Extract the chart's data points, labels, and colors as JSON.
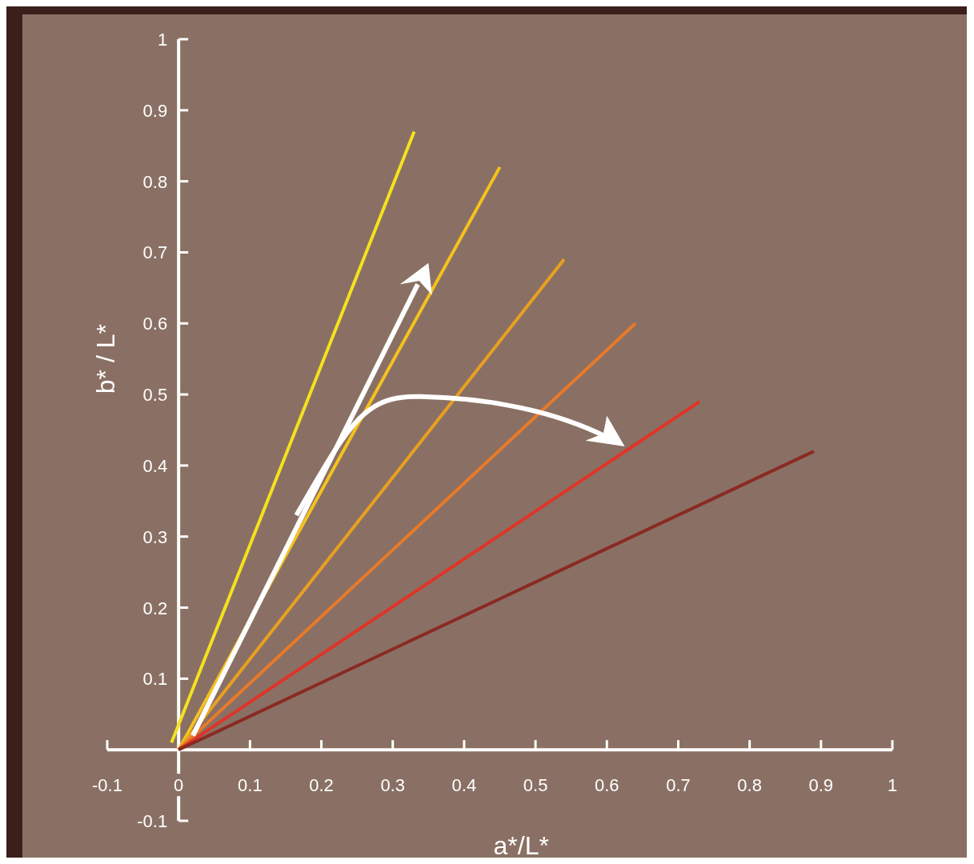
{
  "chart_data": {
    "type": "line",
    "xlabel": "a*/L*",
    "ylabel": "b* / L*",
    "xlim": [
      -0.1,
      1
    ],
    "ylim": [
      -0.1,
      1
    ],
    "xticks": [
      -0.1,
      0,
      0.1,
      0.2,
      0.3,
      0.4,
      0.5,
      0.6,
      0.7,
      0.8,
      0.9,
      1
    ],
    "yticks": [
      -0.1,
      0.1,
      0.2,
      0.3,
      0.4,
      0.5,
      0.6,
      0.7,
      0.8,
      0.9,
      1
    ],
    "grid": false,
    "marker": "none",
    "line_style": "solid",
    "series": [
      {
        "color": "#f5e11e",
        "x": [
          -0.01,
          0.33
        ],
        "values": [
          0.01,
          0.87
        ]
      },
      {
        "color": "#f5c21e",
        "x": [
          0,
          0.45
        ],
        "values": [
          0,
          0.82
        ]
      },
      {
        "color": "#e8a020",
        "x": [
          0,
          0.54
        ],
        "values": [
          0,
          0.69
        ]
      },
      {
        "color": "#e87a28",
        "x": [
          0,
          0.64
        ],
        "values": [
          0,
          0.6
        ]
      },
      {
        "color": "#e03428",
        "x": [
          0,
          0.73
        ],
        "values": [
          0,
          0.49
        ]
      },
      {
        "color": "#8a2a22",
        "x": [
          0,
          0.89
        ],
        "values": [
          0,
          0.42
        ]
      }
    ]
  }
}
